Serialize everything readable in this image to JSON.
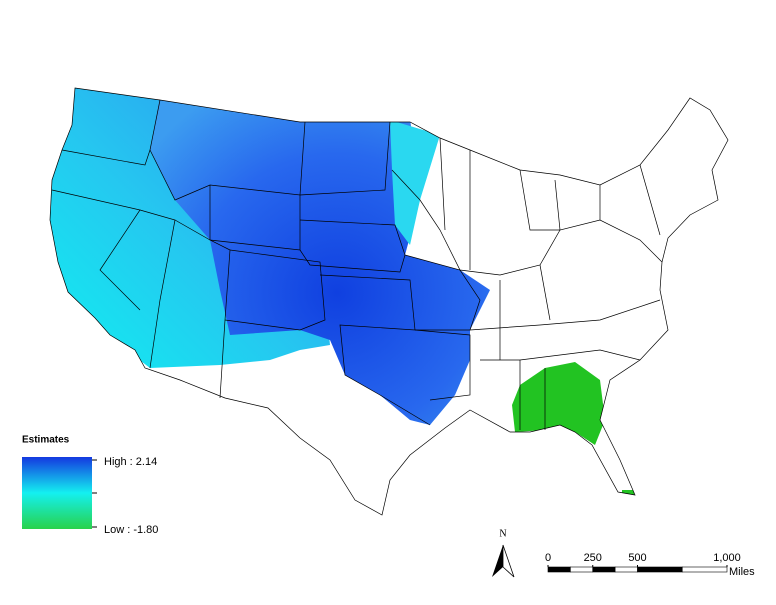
{
  "map": {
    "legend": {
      "title": "Estimates",
      "high_label": "High : 2.14",
      "low_label": "Low : -1.80"
    },
    "north_arrow": "N",
    "scale_bar": {
      "ticks": [
        0,
        250,
        500,
        {
          "value": 1000,
          "label": "1,000"
        }
      ],
      "unit": "Miles"
    }
  }
}
